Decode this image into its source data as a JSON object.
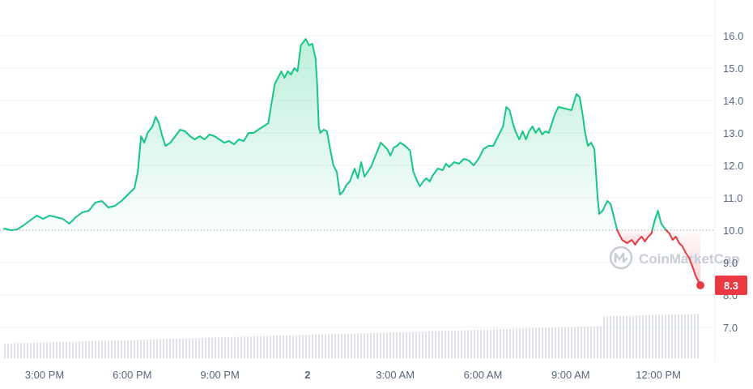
{
  "chart_data": {
    "type": "area",
    "x_labels": [
      "3:00 PM",
      "6:00 PM",
      "9:00 PM",
      "2",
      "3:00 AM",
      "6:00 AM",
      "9:00 AM",
      "12:00 PM"
    ],
    "y_ticks": [
      "16.0",
      "15.0",
      "14.0",
      "13.0",
      "12.0",
      "11.0",
      "10.0",
      "9.0",
      "8.0",
      "7.0"
    ],
    "ylim": [
      6.0,
      17.0
    ],
    "baseline": 10.0,
    "current_value": "8.3",
    "watermark": "CoinMarketCap",
    "grid": true,
    "colors": {
      "up": "#16c784",
      "down": "#ea3943",
      "grid": "#eff2f5",
      "volume": "#d5d9e0",
      "axis_text": "#58667e"
    },
    "series": [
      {
        "points": [
          [
            0.0,
            10.05
          ],
          [
            0.2,
            10.0
          ],
          [
            0.4,
            10.02
          ],
          [
            0.6,
            10.15
          ],
          [
            0.8,
            10.3
          ],
          [
            1.0,
            10.45
          ],
          [
            1.2,
            10.35
          ],
          [
            1.4,
            10.45
          ],
          [
            1.6,
            10.4
          ],
          [
            1.8,
            10.35
          ],
          [
            2.0,
            10.2
          ],
          [
            2.2,
            10.4
          ],
          [
            2.4,
            10.55
          ],
          [
            2.6,
            10.6
          ],
          [
            2.8,
            10.85
          ],
          [
            3.0,
            10.9
          ],
          [
            3.2,
            10.7
          ],
          [
            3.4,
            10.75
          ],
          [
            3.6,
            10.9
          ],
          [
            3.8,
            11.1
          ],
          [
            4.0,
            11.3
          ],
          [
            4.1,
            11.8
          ],
          [
            4.2,
            12.9
          ],
          [
            4.3,
            12.7
          ],
          [
            4.4,
            13.0
          ],
          [
            4.55,
            13.2
          ],
          [
            4.65,
            13.5
          ],
          [
            4.75,
            13.3
          ],
          [
            4.85,
            12.9
          ],
          [
            4.95,
            12.6
          ],
          [
            5.1,
            12.7
          ],
          [
            5.25,
            12.9
          ],
          [
            5.4,
            13.1
          ],
          [
            5.55,
            13.05
          ],
          [
            5.7,
            12.9
          ],
          [
            5.85,
            12.8
          ],
          [
            6.0,
            12.9
          ],
          [
            6.15,
            12.8
          ],
          [
            6.3,
            12.95
          ],
          [
            6.45,
            12.9
          ],
          [
            6.6,
            12.8
          ],
          [
            6.75,
            12.7
          ],
          [
            6.9,
            12.75
          ],
          [
            7.05,
            12.65
          ],
          [
            7.2,
            12.8
          ],
          [
            7.35,
            12.75
          ],
          [
            7.5,
            13.0
          ],
          [
            7.65,
            13.0
          ],
          [
            7.8,
            13.1
          ],
          [
            7.95,
            13.2
          ],
          [
            8.1,
            13.3
          ],
          [
            8.2,
            13.9
          ],
          [
            8.3,
            14.5
          ],
          [
            8.4,
            14.7
          ],
          [
            8.5,
            14.9
          ],
          [
            8.6,
            14.7
          ],
          [
            8.7,
            14.9
          ],
          [
            8.8,
            14.8
          ],
          [
            8.9,
            15.0
          ],
          [
            9.0,
            14.9
          ],
          [
            9.1,
            15.7
          ],
          [
            9.25,
            15.9
          ],
          [
            9.35,
            15.7
          ],
          [
            9.45,
            15.75
          ],
          [
            9.55,
            15.3
          ],
          [
            9.6,
            14.5
          ],
          [
            9.65,
            13.2
          ],
          [
            9.7,
            13.0
          ],
          [
            9.8,
            13.1
          ],
          [
            9.9,
            13.05
          ],
          [
            10.0,
            12.5
          ],
          [
            10.1,
            12.0
          ],
          [
            10.2,
            11.8
          ],
          [
            10.3,
            11.1
          ],
          [
            10.4,
            11.2
          ],
          [
            10.5,
            11.4
          ],
          [
            10.6,
            11.5
          ],
          [
            10.75,
            11.9
          ],
          [
            10.85,
            11.6
          ],
          [
            10.95,
            12.1
          ],
          [
            11.05,
            11.65
          ],
          [
            11.15,
            11.8
          ],
          [
            11.25,
            11.95
          ],
          [
            11.35,
            12.2
          ],
          [
            11.45,
            12.45
          ],
          [
            11.55,
            12.7
          ],
          [
            11.65,
            12.6
          ],
          [
            11.75,
            12.5
          ],
          [
            11.85,
            12.3
          ],
          [
            11.95,
            12.55
          ],
          [
            12.05,
            12.6
          ],
          [
            12.15,
            12.7
          ],
          [
            12.3,
            12.6
          ],
          [
            12.45,
            12.45
          ],
          [
            12.55,
            11.8
          ],
          [
            12.65,
            11.55
          ],
          [
            12.75,
            11.35
          ],
          [
            12.85,
            11.5
          ],
          [
            12.95,
            11.6
          ],
          [
            13.05,
            11.5
          ],
          [
            13.15,
            11.7
          ],
          [
            13.3,
            11.9
          ],
          [
            13.45,
            11.85
          ],
          [
            13.55,
            12.05
          ],
          [
            13.65,
            11.95
          ],
          [
            13.8,
            12.1
          ],
          [
            13.95,
            12.05
          ],
          [
            14.1,
            12.2
          ],
          [
            14.25,
            12.15
          ],
          [
            14.4,
            12.0
          ],
          [
            14.55,
            12.2
          ],
          [
            14.7,
            12.5
          ],
          [
            14.85,
            12.6
          ],
          [
            15.0,
            12.6
          ],
          [
            15.15,
            12.9
          ],
          [
            15.3,
            13.2
          ],
          [
            15.4,
            13.8
          ],
          [
            15.5,
            13.7
          ],
          [
            15.6,
            13.3
          ],
          [
            15.7,
            13.0
          ],
          [
            15.8,
            12.8
          ],
          [
            15.9,
            13.05
          ],
          [
            16.0,
            12.8
          ],
          [
            16.1,
            13.05
          ],
          [
            16.2,
            13.2
          ],
          [
            16.3,
            13.0
          ],
          [
            16.4,
            13.15
          ],
          [
            16.5,
            12.95
          ],
          [
            16.6,
            13.05
          ],
          [
            16.7,
            13.0
          ],
          [
            16.8,
            13.3
          ],
          [
            16.9,
            13.6
          ],
          [
            17.0,
            13.8
          ],
          [
            17.2,
            13.75
          ],
          [
            17.4,
            13.7
          ],
          [
            17.55,
            14.2
          ],
          [
            17.65,
            14.1
          ],
          [
            17.75,
            13.5
          ],
          [
            17.8,
            13.1
          ],
          [
            17.9,
            12.6
          ],
          [
            18.0,
            12.7
          ],
          [
            18.1,
            12.5
          ],
          [
            18.2,
            11.0
          ],
          [
            18.25,
            10.5
          ],
          [
            18.35,
            10.6
          ],
          [
            18.5,
            10.9
          ],
          [
            18.6,
            10.8
          ],
          [
            18.7,
            10.4
          ],
          [
            18.8,
            10.0
          ],
          [
            18.95,
            9.7
          ],
          [
            19.1,
            9.6
          ],
          [
            19.25,
            9.7
          ],
          [
            19.35,
            9.55
          ],
          [
            19.45,
            9.7
          ],
          [
            19.55,
            9.8
          ],
          [
            19.65,
            9.65
          ],
          [
            19.75,
            9.8
          ],
          [
            19.85,
            9.9
          ],
          [
            19.95,
            10.3
          ],
          [
            20.05,
            10.6
          ],
          [
            20.15,
            10.2
          ],
          [
            20.3,
            10.0
          ],
          [
            20.4,
            9.9
          ],
          [
            20.5,
            9.7
          ],
          [
            20.6,
            9.8
          ],
          [
            20.7,
            9.6
          ],
          [
            20.8,
            9.5
          ],
          [
            20.9,
            9.3
          ],
          [
            21.0,
            9.15
          ],
          [
            21.1,
            8.9
          ],
          [
            21.2,
            8.6
          ],
          [
            21.35,
            8.3
          ]
        ]
      }
    ]
  }
}
